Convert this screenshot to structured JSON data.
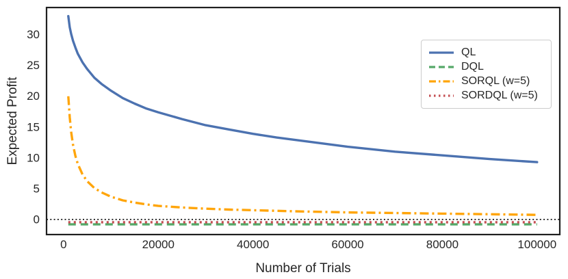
{
  "figure": {
    "background": "#ffffff",
    "spine_color": "#1f1f1f",
    "text_color": "#262626"
  },
  "chart_data": {
    "type": "line",
    "title": "",
    "xlabel": "Number of Trials",
    "ylabel": "Expected Profit",
    "xlim": [
      -3600,
      104800
    ],
    "ylim": [
      -2.45,
      34.4
    ],
    "xticks": [
      0,
      20000,
      40000,
      60000,
      80000,
      100000
    ],
    "xtick_labels": [
      "0",
      "20000",
      "40000",
      "60000",
      "80000",
      "100000"
    ],
    "yticks": [
      0,
      5,
      10,
      15,
      20,
      25,
      30
    ],
    "ytick_labels": [
      "0",
      "5",
      "10",
      "15",
      "20",
      "25",
      "30"
    ],
    "grid": false,
    "legend_position": "upper right",
    "reference_line": {
      "y": 0,
      "color": "#000000",
      "style": "dotted"
    },
    "series": [
      {
        "name": "QL",
        "color": "#4c72b0",
        "style": "solid",
        "x": [
          1000,
          1300,
          1600,
          2000,
          2500,
          3000,
          4000,
          5000,
          6500,
          8000,
          10000,
          12500,
          15000,
          17500,
          20000,
          25000,
          30000,
          35000,
          40000,
          45000,
          50000,
          60000,
          70000,
          80000,
          90000,
          100000
        ],
        "y": [
          33.0,
          31.2,
          30.1,
          29.0,
          27.9,
          26.9,
          25.5,
          24.4,
          23.0,
          22.0,
          20.9,
          19.7,
          18.8,
          18.0,
          17.4,
          16.3,
          15.3,
          14.6,
          13.9,
          13.3,
          12.8,
          11.8,
          11.0,
          10.4,
          9.8,
          9.3
        ]
      },
      {
        "name": "DQL",
        "color": "#55a868",
        "style": "dashed",
        "x": [
          1000,
          100000
        ],
        "y": [
          -0.8,
          -0.8
        ]
      },
      {
        "name": "SORQL (w=5)",
        "color": "#ffa50a",
        "style": "dashdot",
        "x": [
          1000,
          1300,
          1600,
          2000,
          2500,
          3000,
          4000,
          5000,
          6500,
          8000,
          10000,
          12500,
          15000,
          17500,
          20000,
          25000,
          30000,
          35000,
          40000,
          45000,
          50000,
          60000,
          70000,
          80000,
          90000,
          100000
        ],
        "y": [
          20.0,
          16.6,
          14.2,
          12.1,
          10.3,
          9.0,
          7.3,
          6.2,
          5.1,
          4.4,
          3.7,
          3.1,
          2.75,
          2.45,
          2.2,
          1.95,
          1.75,
          1.6,
          1.5,
          1.4,
          1.3,
          1.15,
          1.05,
          0.95,
          0.85,
          0.75
        ]
      },
      {
        "name": "SORDQL (w=5)",
        "color": "#c44e52",
        "style": "dotted",
        "x": [
          1000,
          100000
        ],
        "y": [
          -0.45,
          -0.45
        ]
      }
    ]
  }
}
